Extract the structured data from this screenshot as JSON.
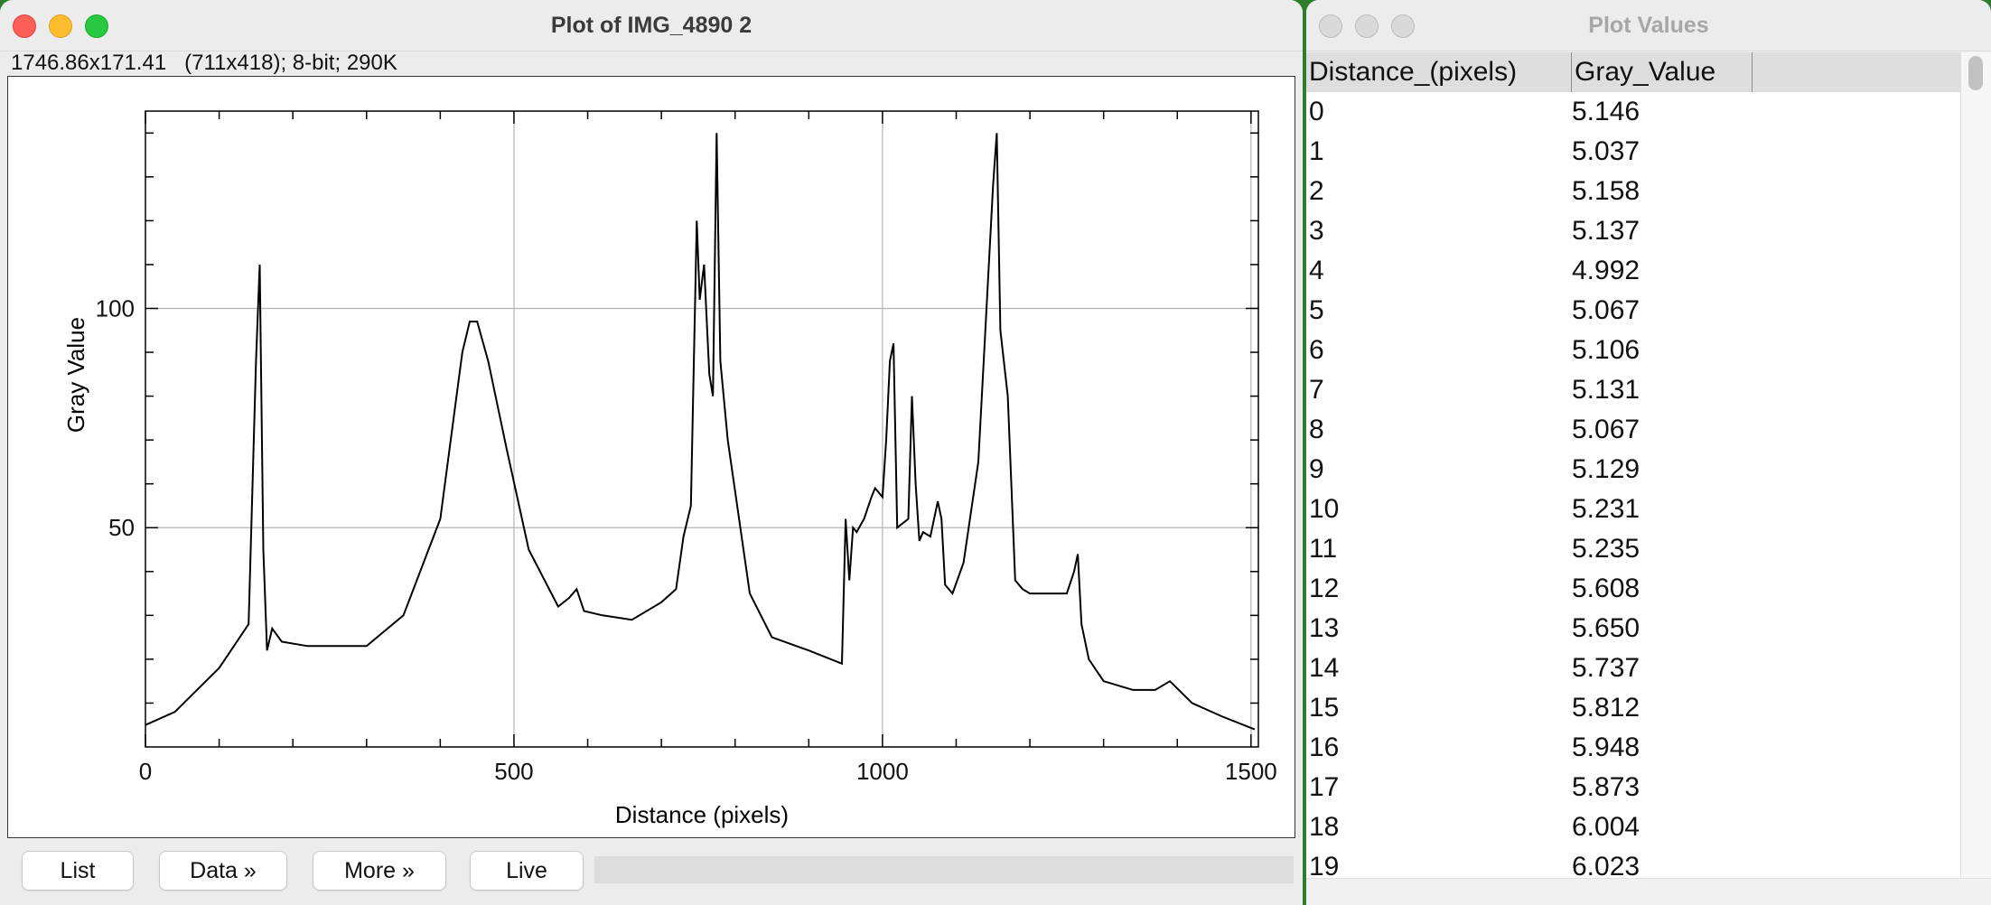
{
  "plot_window": {
    "title": "Plot of IMG_4890 2",
    "info": "1746.86x171.41   (711x418); 8-bit; 290K",
    "buttons": {
      "list": "List",
      "data": "Data »",
      "more": "More »",
      "live": "Live"
    }
  },
  "values_window": {
    "title": "Plot Values",
    "columns": [
      "Distance_(pixels)",
      "Gray_Value"
    ],
    "rows": [
      [
        "0",
        "5.146"
      ],
      [
        "1",
        "5.037"
      ],
      [
        "2",
        "5.158"
      ],
      [
        "3",
        "5.137"
      ],
      [
        "4",
        "4.992"
      ],
      [
        "5",
        "5.067"
      ],
      [
        "6",
        "5.106"
      ],
      [
        "7",
        "5.131"
      ],
      [
        "8",
        "5.067"
      ],
      [
        "9",
        "5.129"
      ],
      [
        "10",
        "5.231"
      ],
      [
        "11",
        "5.235"
      ],
      [
        "12",
        "5.608"
      ],
      [
        "13",
        "5.650"
      ],
      [
        "14",
        "5.737"
      ],
      [
        "15",
        "5.812"
      ],
      [
        "16",
        "5.948"
      ],
      [
        "17",
        "5.873"
      ],
      [
        "18",
        "6.004"
      ],
      [
        "19",
        "6.023"
      ]
    ]
  },
  "chart_data": {
    "type": "line",
    "xlabel": "Distance (pixels)",
    "ylabel": "Gray Value",
    "xlim": [
      0,
      1510
    ],
    "ylim": [
      0,
      145
    ],
    "x_ticks": [
      0,
      500,
      1000,
      1500
    ],
    "y_ticks": [
      50,
      100
    ],
    "grid": true,
    "line_color": "#000000",
    "series": [
      {
        "x": [
          0,
          40,
          100,
          140,
          150,
          155,
          160,
          165,
          172,
          185,
          220,
          300,
          350,
          400,
          430,
          440,
          450,
          465,
          490,
          520,
          560,
          575,
          585,
          595,
          620,
          660,
          700,
          720,
          730,
          740,
          748,
          752,
          758,
          765,
          770,
          775,
          780,
          790,
          820,
          850,
          900,
          945,
          950,
          955,
          960,
          965,
          975,
          985,
          990,
          1000,
          1005,
          1010,
          1015,
          1020,
          1035,
          1040,
          1045,
          1050,
          1055,
          1065,
          1075,
          1080,
          1085,
          1095,
          1110,
          1130,
          1150,
          1155,
          1160,
          1170,
          1180,
          1190,
          1200,
          1250,
          1260,
          1265,
          1270,
          1280,
          1300,
          1340,
          1370,
          1390,
          1420,
          1460,
          1505
        ],
        "y": [
          5,
          8,
          18,
          28,
          88,
          110,
          45,
          22,
          27,
          24,
          23,
          23,
          30,
          52,
          90,
          97,
          97,
          88,
          68,
          45,
          32,
          34,
          36,
          31,
          30,
          29,
          33,
          36,
          48,
          55,
          120,
          102,
          110,
          85,
          80,
          140,
          88,
          70,
          35,
          25,
          22,
          19,
          52,
          38,
          50,
          49,
          52,
          57,
          59,
          57,
          70,
          88,
          92,
          50,
          52,
          80,
          60,
          47,
          49,
          48,
          56,
          52,
          37,
          35,
          42,
          65,
          128,
          140,
          95,
          80,
          38,
          36,
          35,
          35,
          40,
          44,
          28,
          20,
          15,
          13,
          13,
          15,
          10,
          7,
          4
        ]
      }
    ]
  }
}
